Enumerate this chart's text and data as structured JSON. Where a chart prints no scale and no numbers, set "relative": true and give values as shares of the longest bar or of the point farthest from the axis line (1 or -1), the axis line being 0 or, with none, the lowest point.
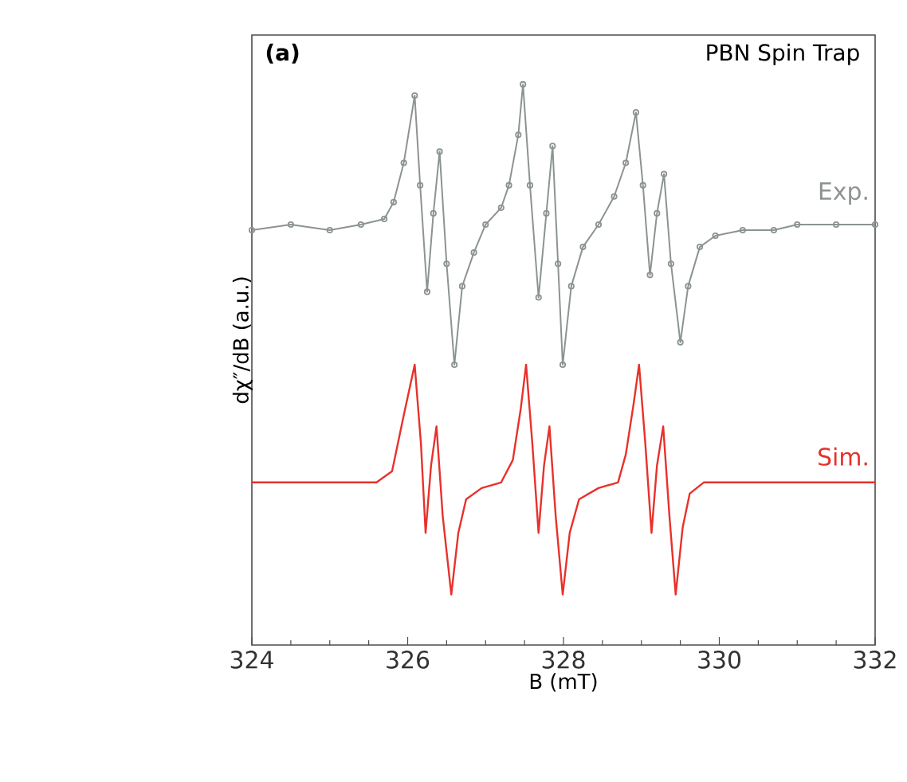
{
  "chart_data": {
    "type": "line",
    "relative": true,
    "xlabel": "B (mT)",
    "ylabel": "dχ″/dB (a.u.)",
    "xlim": [
      324,
      332
    ],
    "xticks": [
      324,
      326,
      328,
      330,
      332
    ],
    "grid": false,
    "legend": false,
    "annotations": [
      "(a)",
      "PBN Spin Trap"
    ],
    "series": [
      {
        "name": "Exp.",
        "color": "#8c9392",
        "marker": "circle",
        "x": [
          324.0,
          324.5,
          325.0,
          325.4,
          325.7,
          325.82,
          325.95,
          326.09,
          326.16,
          326.25,
          326.33,
          326.41,
          326.5,
          326.6,
          326.7,
          326.85,
          327.0,
          327.2,
          327.3,
          327.42,
          327.48,
          327.57,
          327.68,
          327.78,
          327.86,
          327.93,
          327.99,
          328.1,
          328.25,
          328.45,
          328.65,
          328.8,
          328.93,
          329.02,
          329.11,
          329.2,
          329.29,
          329.38,
          329.5,
          329.6,
          329.75,
          329.95,
          330.3,
          330.7,
          331.0,
          331.5,
          332.0
        ],
        "values": [
          0.74,
          0.75,
          0.74,
          0.75,
          0.76,
          0.79,
          0.86,
          0.98,
          0.82,
          0.63,
          0.77,
          0.88,
          0.68,
          0.5,
          0.64,
          0.7,
          0.75,
          0.78,
          0.82,
          0.91,
          1.0,
          0.82,
          0.62,
          0.77,
          0.89,
          0.68,
          0.5,
          0.64,
          0.71,
          0.75,
          0.8,
          0.86,
          0.95,
          0.82,
          0.66,
          0.77,
          0.84,
          0.68,
          0.54,
          0.64,
          0.71,
          0.73,
          0.74,
          0.74,
          0.75,
          0.75,
          0.75
        ]
      },
      {
        "name": "Sim.",
        "color": "#e8312a",
        "x": [
          324.0,
          325.6,
          325.8,
          325.95,
          326.09,
          326.17,
          326.23,
          326.3,
          326.37,
          326.45,
          326.56,
          326.65,
          326.75,
          326.95,
          327.2,
          327.35,
          327.45,
          327.52,
          327.6,
          327.68,
          327.75,
          327.82,
          327.9,
          327.99,
          328.08,
          328.2,
          328.45,
          328.7,
          328.8,
          328.9,
          328.97,
          329.05,
          329.13,
          329.2,
          329.28,
          329.36,
          329.44,
          329.53,
          329.62,
          329.8,
          332.0
        ],
        "values": [
          0.29,
          0.29,
          0.31,
          0.41,
          0.5,
          0.36,
          0.2,
          0.32,
          0.39,
          0.23,
          0.09,
          0.2,
          0.26,
          0.28,
          0.29,
          0.33,
          0.42,
          0.5,
          0.36,
          0.2,
          0.32,
          0.39,
          0.23,
          0.09,
          0.2,
          0.26,
          0.28,
          0.29,
          0.34,
          0.43,
          0.5,
          0.36,
          0.2,
          0.32,
          0.39,
          0.23,
          0.09,
          0.21,
          0.27,
          0.29,
          0.29
        ]
      }
    ]
  }
}
